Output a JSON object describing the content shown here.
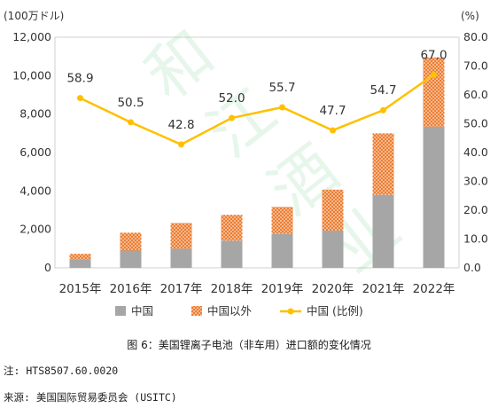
{
  "chart_data": {
    "type": "bar+line",
    "categories": [
      "2015年",
      "2016年",
      "2017年",
      "2018年",
      "2019年",
      "2020年",
      "2021年",
      "2022年"
    ],
    "series": [
      {
        "name": "中国",
        "type": "stacked-bar",
        "axis": "left",
        "color": "#a6a6a6",
        "values": [
          430,
          900,
          1000,
          1420,
          1770,
          1940,
          3800,
          7350
        ]
      },
      {
        "name": "中国以外",
        "type": "stacked-bar",
        "axis": "left",
        "color": "#ed7d31",
        "pattern": "dotted",
        "values": [
          300,
          930,
          1330,
          1340,
          1400,
          2130,
          3200,
          3600
        ]
      },
      {
        "name": "中国 (比例)",
        "type": "line",
        "axis": "right",
        "color": "#ffc000",
        "values": [
          58.9,
          50.5,
          42.8,
          52.0,
          55.7,
          47.7,
          54.7,
          67.0
        ],
        "labels": [
          "58.9",
          "50.5",
          "42.8",
          "52.0",
          "55.7",
          "47.7",
          "54.7",
          "67.0"
        ]
      }
    ],
    "y_left": {
      "unit": "(100万ドル)",
      "ylim": [
        0,
        12000
      ],
      "ticks": [
        "0",
        "2,000",
        "4,000",
        "6,000",
        "8,000",
        "10,000",
        "12,000"
      ]
    },
    "y_right": {
      "unit": "(%)",
      "ylim": [
        0,
        80
      ],
      "ticks": [
        "0.0",
        "10.0",
        "20.0",
        "30.0",
        "40.0",
        "50.0",
        "60.0",
        "70.0",
        "80.0"
      ]
    },
    "grid": false,
    "legend": "bottom"
  },
  "caption": "图 6：美国锂离子电池（非车用）进口额的变化情况",
  "note": "注: HTS8507.60.0020",
  "source": "来源: 美国国际贸易委员会 (USITC)",
  "watermark": "和江酒业"
}
